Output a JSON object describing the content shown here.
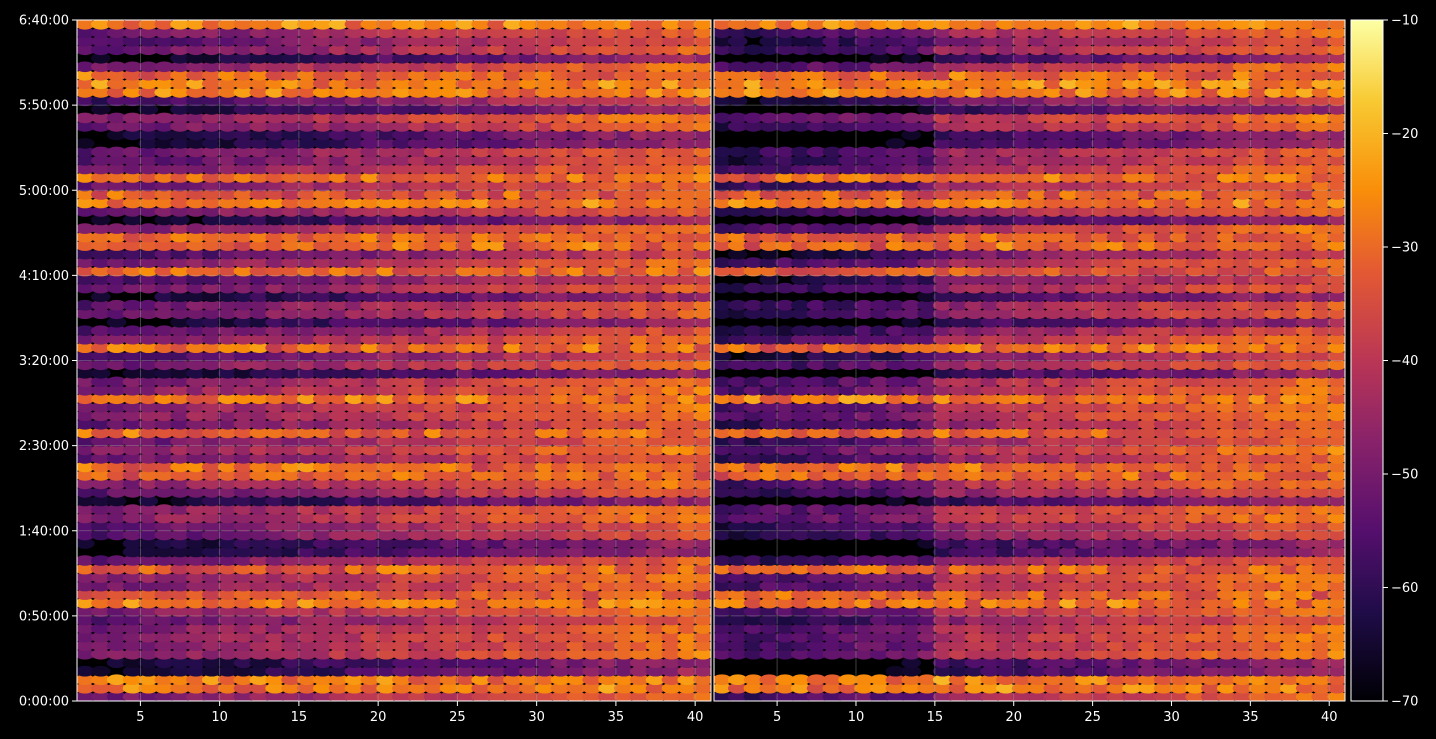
{
  "chart_data": {
    "type": "heatmap",
    "title": "",
    "panels": [
      {
        "name": "",
        "x_ticks": [
          5,
          10,
          15,
          20,
          25,
          30,
          35,
          40
        ],
        "x_tick_labels": [
          "5",
          "10",
          "15",
          "20",
          "25",
          "30",
          "35",
          "40"
        ],
        "xlim": [
          1,
          40
        ]
      },
      {
        "name": "",
        "x_ticks": [
          5,
          10,
          15,
          20,
          25,
          30,
          35,
          40
        ],
        "x_tick_labels": [
          "5",
          "10",
          "15",
          "20",
          "25",
          "30",
          "35",
          "40"
        ],
        "xlim": [
          1,
          40
        ]
      }
    ],
    "y_ticks_seconds": [
      0,
      3000,
      6000,
      9000,
      12000,
      15000,
      18000,
      21000,
      24000
    ],
    "y_tick_labels": [
      "0:00:00",
      "0:50:00",
      "1:40:00",
      "2:30:00",
      "3:20:00",
      "4:10:00",
      "5:00:00",
      "5:50:00",
      "6:40:00"
    ],
    "ylim_seconds": [
      0,
      24000
    ],
    "colorbar": {
      "colormap": "inferno",
      "range": [
        -70,
        -10
      ],
      "ticks": [
        -70,
        -60,
        -50,
        -40,
        -30,
        -20,
        -10
      ],
      "tick_labels": [
        "−70",
        "−60",
        "−50",
        "−40",
        "−30",
        "−20",
        "−10"
      ]
    },
    "grid": true,
    "row_count": 80,
    "column_count": 40,
    "strong_rows_seconds": [
      600,
      3600,
      4600,
      8100,
      9400,
      10700,
      12500,
      15100,
      16200,
      17700,
      18400,
      21400,
      21900,
      23900
    ],
    "quiet_rows_seconds": [
      1200,
      5400,
      7000,
      11600,
      13400,
      14300,
      16900,
      19800,
      20800,
      22600
    ],
    "colors": {
      "background": "#000000",
      "axis": "#ffffff",
      "grid": "#b0b0b0"
    }
  }
}
